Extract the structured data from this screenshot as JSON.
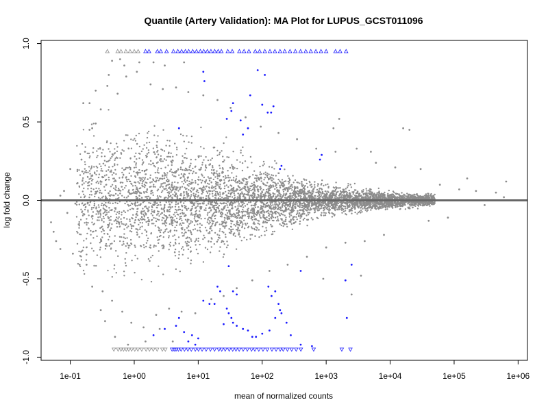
{
  "chart_data": {
    "type": "scatter",
    "title": "Quantile (Artery Validation): MA Plot for LUPUS_GCST011096",
    "xlabel": "mean of normalized counts",
    "ylabel": "log fold change",
    "x_scale": "log10",
    "xlim": [
      0.035,
      1400000
    ],
    "ylim": [
      -1.02,
      1.02
    ],
    "x_ticks": [
      {
        "value": 0.1,
        "label": "1e-01"
      },
      {
        "value": 1,
        "label": "1e+00"
      },
      {
        "value": 10,
        "label": "1e+01"
      },
      {
        "value": 100,
        "label": "1e+02"
      },
      {
        "value": 1000,
        "label": "1e+03"
      },
      {
        "value": 10000,
        "label": "1e+04"
      },
      {
        "value": 100000,
        "label": "1e+05"
      },
      {
        "value": 1000000,
        "label": "1e+06"
      }
    ],
    "y_ticks": [
      {
        "value": -1.0,
        "label": "-1.0"
      },
      {
        "value": -0.5,
        "label": "-0.5"
      },
      {
        "value": 0.0,
        "label": "0.0"
      },
      {
        "value": 0.5,
        "label": "0.5"
      },
      {
        "value": 1.0,
        "label": "1.0"
      }
    ],
    "reference_line": {
      "y": 0,
      "color": "#666666"
    },
    "grid": false,
    "colors": {
      "not_significant": "#8c8c8c",
      "significant": "#1a1aff"
    },
    "series": [
      {
        "color": "#1a1aff",
        "marker": "dot",
        "points": [
          [
            12,
            0.82
          ],
          [
            12.5,
            0.76
          ],
          [
            35,
            0.62
          ],
          [
            33,
            0.57
          ],
          [
            28,
            0.52
          ],
          [
            5,
            0.46
          ],
          [
            46,
            0.51
          ],
          [
            85,
            0.83
          ],
          [
            100,
            0.61
          ],
          [
            138,
            0.56
          ],
          [
            122,
            0.56
          ],
          [
            50,
            0.42
          ],
          [
            60,
            0.46
          ],
          [
            65,
            0.67
          ],
          [
            110,
            0.8
          ],
          [
            150,
            0.6
          ],
          [
            200,
            0.22
          ],
          [
            190,
            0.2
          ],
          [
            800,
            0.26
          ],
          [
            850,
            0.29
          ],
          [
            2500,
            -0.41
          ],
          [
            2000,
            -0.51
          ],
          [
            400,
            -0.45
          ],
          [
            30,
            -0.42
          ],
          [
            20,
            -0.55
          ],
          [
            22,
            -0.58
          ],
          [
            35,
            -0.58
          ],
          [
            40,
            -0.6
          ],
          [
            15,
            -0.66
          ],
          [
            18,
            -0.66
          ],
          [
            12,
            -0.64
          ],
          [
            28,
            -0.69
          ],
          [
            30,
            -0.72
          ],
          [
            33,
            -0.75
          ],
          [
            25,
            -0.79
          ],
          [
            35,
            -0.78
          ],
          [
            40,
            -0.8
          ],
          [
            50,
            -0.82
          ],
          [
            60,
            -0.83
          ],
          [
            70,
            -0.87
          ],
          [
            80,
            -0.87
          ],
          [
            100,
            -0.85
          ],
          [
            130,
            -0.83
          ],
          [
            160,
            -0.75
          ],
          [
            190,
            -0.7
          ],
          [
            240,
            -0.78
          ],
          [
            140,
            -0.61
          ],
          [
            160,
            -0.58
          ],
          [
            180,
            -0.66
          ],
          [
            200,
            -0.72
          ],
          [
            2100,
            -0.75
          ],
          [
            5,
            -0.75
          ],
          [
            4.5,
            -0.8
          ],
          [
            8,
            -0.86
          ],
          [
            10,
            -0.88
          ],
          [
            6,
            -0.84
          ],
          [
            3,
            -0.82
          ],
          [
            2,
            -0.86
          ],
          [
            400,
            -0.92
          ],
          [
            600,
            -0.93
          ],
          [
            125,
            -0.55
          ],
          [
            280,
            -0.86
          ],
          [
            9,
            -0.92
          ],
          [
            7,
            -0.9
          ]
        ]
      },
      {
        "color": "#1a1aff",
        "marker": "triangle-up",
        "points": [
          [
            1.5,
            0.95
          ],
          [
            1.7,
            0.95
          ],
          [
            2.3,
            0.95
          ],
          [
            2.6,
            0.95
          ],
          [
            3.2,
            0.95
          ],
          [
            4.1,
            0.95
          ],
          [
            4.8,
            0.95
          ],
          [
            5.5,
            0.95
          ],
          [
            6.3,
            0.95
          ],
          [
            7.1,
            0.95
          ],
          [
            8.2,
            0.95
          ],
          [
            9.4,
            0.95
          ],
          [
            10.8,
            0.95
          ],
          [
            12.2,
            0.95
          ],
          [
            13.9,
            0.95
          ],
          [
            15.8,
            0.95
          ],
          [
            18.1,
            0.95
          ],
          [
            20.5,
            0.95
          ],
          [
            23,
            0.95
          ],
          [
            29,
            0.95
          ],
          [
            34,
            0.95
          ],
          [
            44,
            0.95
          ],
          [
            52,
            0.95
          ],
          [
            62,
            0.95
          ],
          [
            78,
            0.95
          ],
          [
            91,
            0.95
          ],
          [
            110,
            0.95
          ],
          [
            132,
            0.95
          ],
          [
            158,
            0.95
          ],
          [
            190,
            0.95
          ],
          [
            225,
            0.95
          ],
          [
            272,
            0.95
          ],
          [
            330,
            0.95
          ],
          [
            398,
            0.95
          ],
          [
            480,
            0.95
          ],
          [
            575,
            0.95
          ],
          [
            690,
            0.95
          ],
          [
            830,
            0.95
          ],
          [
            1000,
            0.95
          ],
          [
            1400,
            0.95
          ],
          [
            1650,
            0.95
          ],
          [
            2050,
            0.95
          ]
        ]
      },
      {
        "color": "#8c8c8c",
        "marker": "triangle-up",
        "points": [
          [
            0.38,
            0.95
          ],
          [
            0.55,
            0.95
          ],
          [
            0.62,
            0.95
          ],
          [
            0.74,
            0.95
          ],
          [
            0.86,
            0.95
          ],
          [
            1.0,
            0.95
          ],
          [
            1.15,
            0.95
          ]
        ]
      },
      {
        "color": "#1a1aff",
        "marker": "triangle-down",
        "points": [
          [
            3.9,
            -0.95
          ],
          [
            4.2,
            -0.95
          ],
          [
            4.5,
            -0.95
          ],
          [
            4.9,
            -0.95
          ],
          [
            5.4,
            -0.95
          ],
          [
            6.1,
            -0.95
          ],
          [
            6.9,
            -0.95
          ],
          [
            7.8,
            -0.95
          ],
          [
            9.0,
            -0.95
          ],
          [
            10.1,
            -0.95
          ],
          [
            11.5,
            -0.95
          ],
          [
            13.3,
            -0.95
          ],
          [
            15.5,
            -0.95
          ],
          [
            18.0,
            -0.95
          ],
          [
            21.0,
            -0.95
          ],
          [
            23.3,
            -0.95
          ],
          [
            26.4,
            -0.95
          ],
          [
            30.5,
            -0.95
          ],
          [
            34.6,
            -0.95
          ],
          [
            38.9,
            -0.95
          ],
          [
            43.7,
            -0.95
          ],
          [
            50.4,
            -0.95
          ],
          [
            58.5,
            -0.95
          ],
          [
            68.1,
            -0.95
          ],
          [
            76.8,
            -0.95
          ],
          [
            88.5,
            -0.95
          ],
          [
            103,
            -0.95
          ],
          [
            120,
            -0.95
          ],
          [
            142,
            -0.95
          ],
          [
            165,
            -0.95
          ],
          [
            191,
            -0.95
          ],
          [
            213,
            -0.95
          ],
          [
            248,
            -0.95
          ],
          [
            289,
            -0.95
          ],
          [
            340,
            -0.95
          ],
          [
            402,
            -0.95
          ],
          [
            638,
            -0.95
          ],
          [
            1755,
            -0.95
          ],
          [
            2394,
            -0.95
          ]
        ]
      },
      {
        "color": "#8c8c8c",
        "marker": "triangle-down",
        "points": [
          [
            0.48,
            -0.95
          ],
          [
            0.56,
            -0.95
          ],
          [
            0.62,
            -0.95
          ],
          [
            0.68,
            -0.95
          ],
          [
            0.75,
            -0.95
          ],
          [
            0.82,
            -0.95
          ],
          [
            0.91,
            -0.95
          ],
          [
            1.02,
            -0.95
          ],
          [
            1.14,
            -0.95
          ],
          [
            1.31,
            -0.95
          ],
          [
            1.53,
            -0.95
          ],
          [
            1.73,
            -0.95
          ],
          [
            1.98,
            -0.95
          ],
          [
            2.28,
            -0.95
          ],
          [
            2.75,
            -0.95
          ],
          [
            3.06,
            -0.95
          ]
        ]
      },
      {
        "color": "#8c8c8c",
        "marker": "dot",
        "points": [
          [
            0.05,
            -0.14
          ],
          [
            0.055,
            -0.2
          ],
          [
            0.06,
            -0.26
          ],
          [
            0.07,
            -0.31
          ],
          [
            0.07,
            0.03
          ],
          [
            0.08,
            0.06
          ],
          [
            0.09,
            -0.08
          ],
          [
            0.1,
            0.2
          ],
          [
            0.12,
            -0.02
          ],
          [
            0.13,
            0.11
          ],
          [
            0.15,
            0.26
          ],
          [
            0.18,
            -0.41
          ],
          [
            0.2,
            0.62
          ],
          [
            0.22,
            -0.55
          ],
          [
            0.25,
            0.7
          ],
          [
            0.3,
            -0.7
          ],
          [
            0.35,
            -0.77
          ],
          [
            0.4,
            0.8
          ],
          [
            0.45,
            0.89
          ],
          [
            0.5,
            -0.87
          ],
          [
            0.6,
            0.9
          ],
          [
            0.7,
            0.86
          ],
          [
            0.8,
            -0.92
          ],
          [
            1.2,
            0.88
          ],
          [
            1.5,
            -0.9
          ],
          [
            2,
            0.88
          ],
          [
            2.5,
            -0.82
          ],
          [
            3,
            0.86
          ],
          [
            4,
            -0.9
          ],
          [
            6,
            0.88
          ],
          [
            0.2,
            0.45
          ],
          [
            0.25,
            0.49
          ],
          [
            0.3,
            0.58
          ],
          [
            0.16,
            0.62
          ],
          [
            0.22,
            0.46
          ],
          [
            0.11,
            -0.34
          ],
          [
            0.14,
            -0.41
          ],
          [
            0.17,
            0.31
          ],
          [
            0.32,
            -0.58
          ],
          [
            0.38,
            0.73
          ],
          [
            0.45,
            -0.64
          ],
          [
            0.55,
            0.68
          ],
          [
            0.65,
            -0.71
          ],
          [
            0.75,
            0.79
          ],
          [
            0.9,
            -0.78
          ],
          [
            1.1,
            0.82
          ],
          [
            1.4,
            -0.81
          ],
          [
            1.8,
            0.74
          ],
          [
            2.2,
            -0.73
          ],
          [
            2.8,
            0.71
          ],
          [
            3.5,
            -0.69
          ],
          [
            4.5,
            0.72
          ],
          [
            5.5,
            -0.71
          ],
          [
            7,
            0.69
          ],
          [
            9,
            -0.72
          ],
          [
            12,
            0.67
          ],
          [
            16,
            -0.63
          ],
          [
            20,
            0.64
          ],
          [
            25,
            -0.61
          ],
          [
            32,
            0.59
          ],
          [
            40,
            -0.56
          ],
          [
            55,
            0.53
          ],
          [
            70,
            -0.51
          ],
          [
            95,
            0.47
          ],
          [
            130,
            -0.45
          ],
          [
            180,
            0.43
          ],
          [
            250,
            -0.41
          ],
          [
            350,
            0.39
          ],
          [
            500,
            -0.36
          ],
          [
            700,
            0.33
          ],
          [
            1000,
            -0.3
          ],
          [
            1400,
            0.31
          ],
          [
            2000,
            -0.27
          ],
          [
            3000,
            0.33
          ],
          [
            4000,
            -0.26
          ],
          [
            6000,
            0.24
          ],
          [
            8000,
            -0.22
          ],
          [
            12000,
            0.21
          ],
          [
            16000,
            0.46
          ],
          [
            20000,
            0.45
          ],
          [
            30000,
            0.2
          ],
          [
            40000,
            -0.13
          ],
          [
            60000,
            0.1
          ],
          [
            80000,
            -0.11
          ],
          [
            120000,
            0.07
          ],
          [
            160000,
            0.14
          ],
          [
            220000,
            0.06
          ],
          [
            300000,
            -0.03
          ],
          [
            450000,
            0.05
          ],
          [
            600000,
            0.02
          ],
          [
            650000,
            0.12
          ],
          [
            1600,
            0.52
          ],
          [
            1300,
            0.46
          ],
          [
            900,
            -0.5
          ],
          [
            2500,
            -0.6
          ],
          [
            3500,
            -0.48
          ],
          [
            5000,
            0.31
          ]
        ]
      }
    ],
    "density_cloud": {
      "color": "#8c8c8c",
      "description_of_distribution": "dense gray cloud of points centered on y=0, funnel-shaped: spread of roughly ±0.7 at low counts narrowing to about ±0.1 at 1e+05",
      "x_range": [
        0.05,
        700000
      ],
      "count_range_spread": [
        {
          "x": 0.2,
          "spread": 0.55
        },
        {
          "x": 1,
          "spread": 0.55
        },
        {
          "x": 10,
          "spread": 0.45
        },
        {
          "x": 100,
          "spread": 0.28
        },
        {
          "x": 1000,
          "spread": 0.12
        },
        {
          "x": 10000,
          "spread": 0.07
        },
        {
          "x": 100000,
          "spread": 0.04
        }
      ]
    }
  }
}
